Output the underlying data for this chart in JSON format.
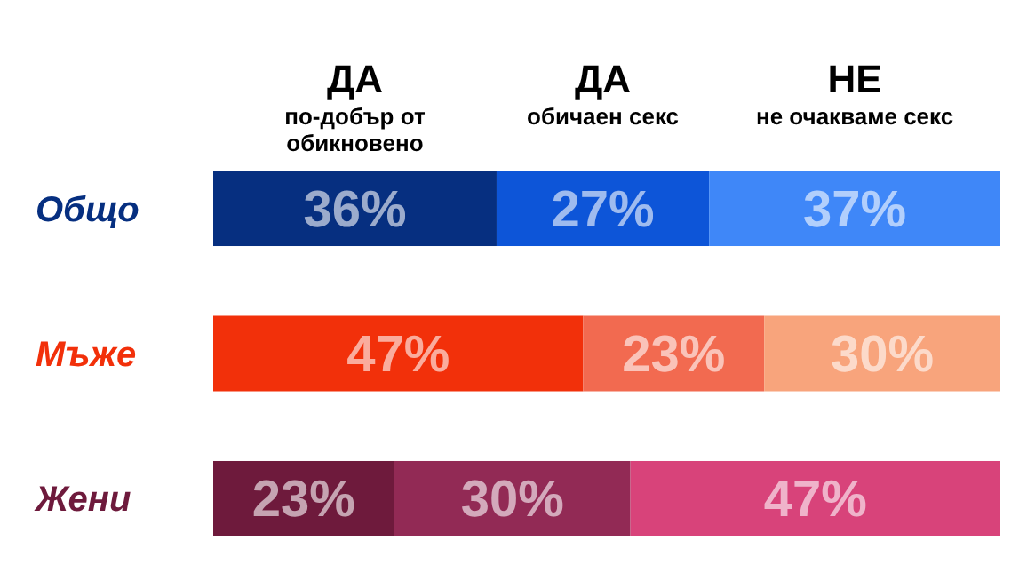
{
  "chart_data": {
    "type": "bar",
    "orientation": "horizontal",
    "stacked": true,
    "categories": [
      "Общо",
      "Мъже",
      "Жени"
    ],
    "xlim": [
      0,
      100
    ],
    "tick_labels": "y",
    "series": [
      {
        "name": "ДА\nпо-добър от\nобикновено",
        "colors": [
          "#062f80",
          "#f2300a",
          "#6e1a3c"
        ],
        "values": [
          36,
          47,
          23
        ],
        "value_labels": [
          "36%",
          "47%",
          "23%"
        ]
      },
      {
        "name": "ДА\nобичаен секс",
        "colors": [
          "#0d55d8",
          "#f26a50",
          "#922a55"
        ],
        "values": [
          27,
          23,
          30
        ],
        "value_labels": [
          "27%",
          "23%",
          "30%"
        ]
      },
      {
        "name": "НЕ\nне очакваме секс",
        "colors": [
          "#3f87f8",
          "#f8a47c",
          "#d8437a"
        ],
        "values": [
          37,
          30,
          47
        ],
        "value_labels": [
          "37%",
          "30%",
          "47%"
        ]
      }
    ]
  }
}
